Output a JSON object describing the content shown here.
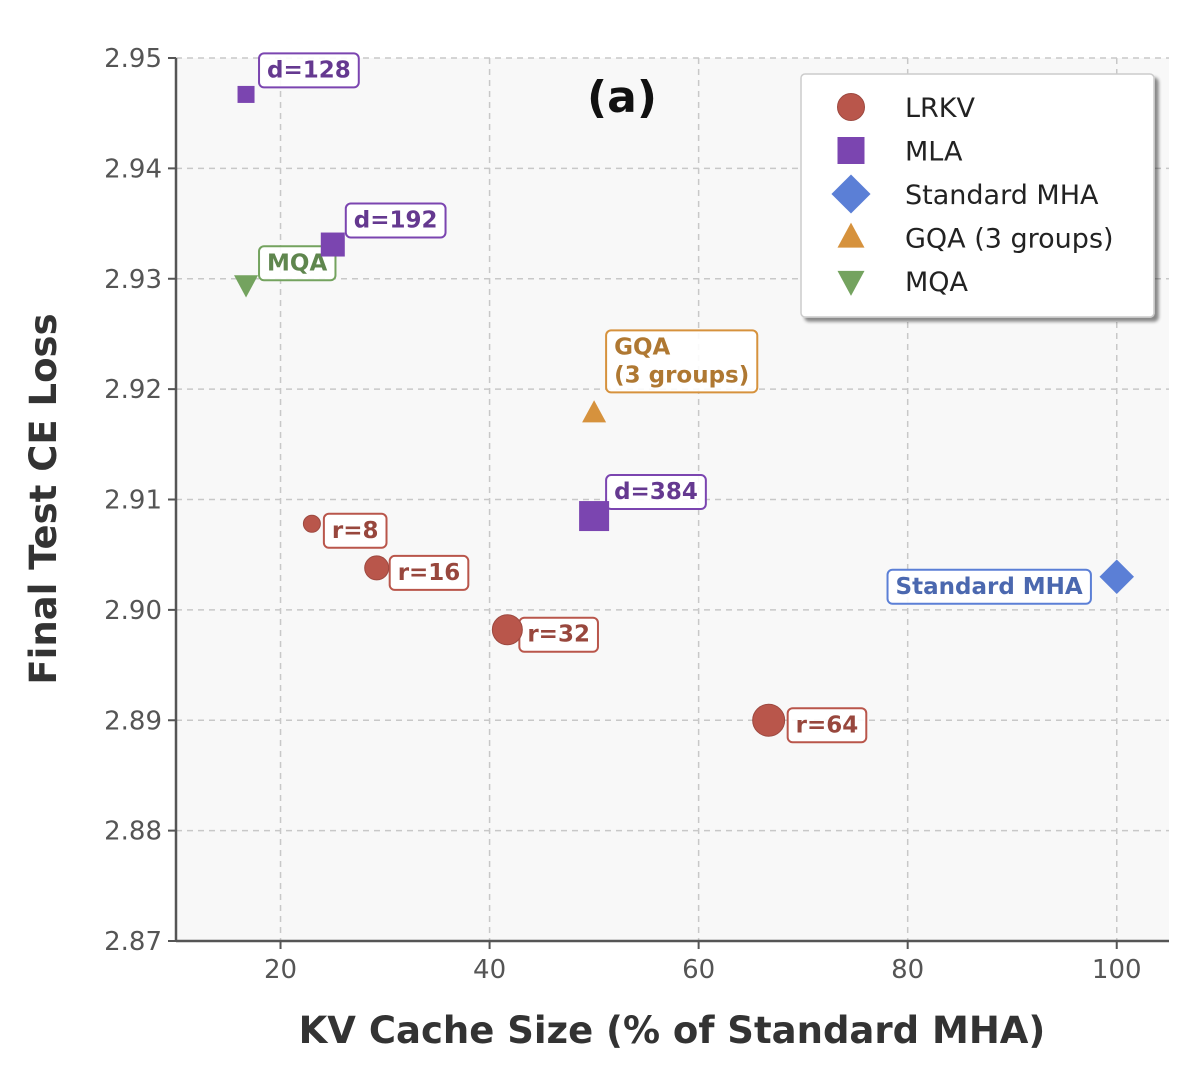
{
  "chart_data": {
    "type": "scatter",
    "panel_label": "(a)",
    "xlabel": "KV Cache Size (% of Standard MHA)",
    "ylabel": "Final Test CE Loss",
    "xlim": [
      10,
      105
    ],
    "ylim": [
      2.87,
      2.95
    ],
    "xticks": [
      20,
      40,
      60,
      80,
      100
    ],
    "yticks": [
      2.87,
      2.88,
      2.89,
      2.9,
      2.91,
      2.92,
      2.93,
      2.94,
      2.95
    ],
    "ytick_labels": [
      "2.87",
      "2.88",
      "2.89",
      "2.90",
      "2.91",
      "2.92",
      "2.93",
      "2.94",
      "2.95"
    ],
    "grid": true,
    "legend_position": "top-right",
    "series": [
      {
        "name": "LRKV",
        "marker": "circle",
        "color": "#b9564b",
        "points": [
          {
            "x": 23.0,
            "y": 2.9078,
            "label": "r=8",
            "size": "small"
          },
          {
            "x": 29.2,
            "y": 2.9038,
            "label": "r=16",
            "size": "medium"
          },
          {
            "x": 41.7,
            "y": 2.8982,
            "label": "r=32",
            "size": "large"
          },
          {
            "x": 66.7,
            "y": 2.89,
            "label": "r=64",
            "size": "xlarge"
          }
        ]
      },
      {
        "name": "MLA",
        "marker": "square",
        "color": "#7b45b0",
        "points": [
          {
            "x": 16.7,
            "y": 2.9467,
            "label": "d=128",
            "size": "small"
          },
          {
            "x": 25.0,
            "y": 2.9331,
            "label": "d=192",
            "size": "medium"
          },
          {
            "x": 50.0,
            "y": 2.9085,
            "label": "d=384",
            "size": "large"
          }
        ]
      },
      {
        "name": "Standard MHA",
        "marker": "diamond",
        "color": "#5b7fd6",
        "points": [
          {
            "x": 100.0,
            "y": 2.903,
            "label": "Standard MHA",
            "size": "large"
          }
        ]
      },
      {
        "name": "GQA (3 groups)",
        "marker": "triangle-up",
        "color": "#d6923d",
        "points": [
          {
            "x": 50.0,
            "y": 2.9178,
            "label": "GQA\n(3 groups)",
            "size": "medium"
          }
        ]
      },
      {
        "name": "MQA",
        "marker": "triangle-down",
        "color": "#74a35f",
        "points": [
          {
            "x": 16.7,
            "y": 2.9295,
            "label": "MQA",
            "size": "medium"
          }
        ]
      }
    ]
  }
}
